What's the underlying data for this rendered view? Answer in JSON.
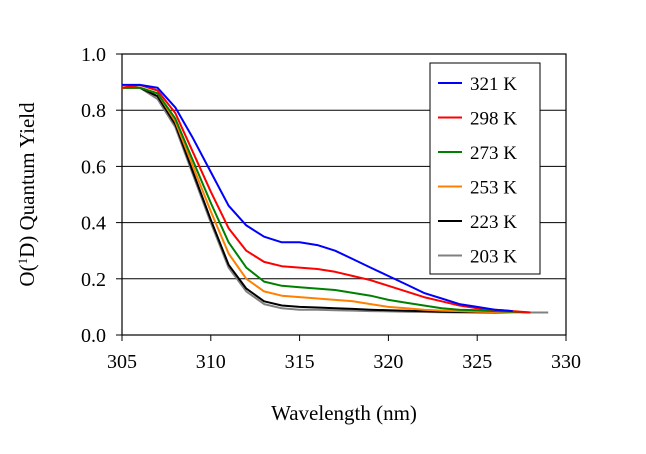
{
  "chart_data": {
    "type": "line",
    "title": "",
    "xlabel": "Wavelength (nm)",
    "ylabel": {
      "prefix": "O(",
      "superscript": "1",
      "suffix": "D) Quantum Yield"
    },
    "xlim": [
      305,
      330
    ],
    "ylim": [
      0.0,
      1.0
    ],
    "x_ticks": [
      305,
      310,
      315,
      320,
      325,
      330
    ],
    "y_ticks": [
      0.0,
      0.2,
      0.4,
      0.6,
      0.8,
      1.0
    ],
    "x_tick_labels": [
      "305",
      "310",
      "315",
      "320",
      "325",
      "330"
    ],
    "y_tick_labels": [
      "0.0",
      "0.2",
      "0.4",
      "0.6",
      "0.8",
      "1.0"
    ],
    "grid": "horizontal",
    "legend_position": "top-right",
    "series": [
      {
        "name": "321 K",
        "color": "#0000ff",
        "points": [
          [
            305,
            0.89
          ],
          [
            306,
            0.89
          ],
          [
            307,
            0.88
          ],
          [
            308,
            0.81
          ],
          [
            309,
            0.7
          ],
          [
            310,
            0.58
          ],
          [
            311,
            0.46
          ],
          [
            312,
            0.39
          ],
          [
            313,
            0.35
          ],
          [
            314,
            0.33
          ],
          [
            315,
            0.33
          ],
          [
            316,
            0.32
          ],
          [
            317,
            0.3
          ],
          [
            318,
            0.27
          ],
          [
            319,
            0.24
          ],
          [
            320,
            0.21
          ],
          [
            321,
            0.18
          ],
          [
            322,
            0.15
          ],
          [
            323,
            0.13
          ],
          [
            324,
            0.11
          ],
          [
            325,
            0.1
          ],
          [
            326,
            0.09
          ],
          [
            327,
            0.085
          ]
        ]
      },
      {
        "name": "298 K",
        "color": "#ff0000",
        "points": [
          [
            305,
            0.88
          ],
          [
            306,
            0.89
          ],
          [
            307,
            0.87
          ],
          [
            308,
            0.79
          ],
          [
            309,
            0.65
          ],
          [
            310,
            0.51
          ],
          [
            311,
            0.38
          ],
          [
            312,
            0.3
          ],
          [
            313,
            0.26
          ],
          [
            314,
            0.245
          ],
          [
            315,
            0.24
          ],
          [
            316,
            0.235
          ],
          [
            317,
            0.225
          ],
          [
            318,
            0.21
          ],
          [
            319,
            0.195
          ],
          [
            320,
            0.175
          ],
          [
            321,
            0.155
          ],
          [
            322,
            0.135
          ],
          [
            323,
            0.12
          ],
          [
            324,
            0.105
          ],
          [
            325,
            0.095
          ],
          [
            326,
            0.09
          ],
          [
            327,
            0.085
          ],
          [
            328,
            0.08
          ]
        ]
      },
      {
        "name": "273 K",
        "color": "#008000",
        "points": [
          [
            305,
            0.88
          ],
          [
            306,
            0.88
          ],
          [
            307,
            0.86
          ],
          [
            308,
            0.77
          ],
          [
            309,
            0.62
          ],
          [
            310,
            0.47
          ],
          [
            311,
            0.33
          ],
          [
            312,
            0.24
          ],
          [
            313,
            0.19
          ],
          [
            314,
            0.175
          ],
          [
            315,
            0.17
          ],
          [
            316,
            0.165
          ],
          [
            317,
            0.16
          ],
          [
            318,
            0.15
          ],
          [
            319,
            0.14
          ],
          [
            320,
            0.125
          ],
          [
            321,
            0.115
          ],
          [
            322,
            0.105
          ],
          [
            323,
            0.095
          ],
          [
            324,
            0.09
          ],
          [
            325,
            0.088
          ],
          [
            326,
            0.085
          ],
          [
            327,
            0.083
          ],
          [
            328,
            0.08
          ]
        ]
      },
      {
        "name": "253 K",
        "color": "#ff8000",
        "points": [
          [
            305,
            0.88
          ],
          [
            306,
            0.88
          ],
          [
            307,
            0.86
          ],
          [
            308,
            0.76
          ],
          [
            309,
            0.6
          ],
          [
            310,
            0.44
          ],
          [
            311,
            0.29
          ],
          [
            312,
            0.2
          ],
          [
            313,
            0.155
          ],
          [
            314,
            0.14
          ],
          [
            315,
            0.135
          ],
          [
            316,
            0.13
          ],
          [
            317,
            0.125
          ],
          [
            318,
            0.12
          ],
          [
            319,
            0.11
          ],
          [
            320,
            0.1
          ],
          [
            321,
            0.095
          ],
          [
            322,
            0.09
          ],
          [
            323,
            0.087
          ],
          [
            324,
            0.085
          ],
          [
            325,
            0.083
          ],
          [
            326,
            0.082
          ],
          [
            327,
            0.08
          ],
          [
            328,
            0.08
          ]
        ]
      },
      {
        "name": "223 K",
        "color": "#000000",
        "points": [
          [
            305,
            0.88
          ],
          [
            306,
            0.88
          ],
          [
            307,
            0.85
          ],
          [
            308,
            0.75
          ],
          [
            309,
            0.58
          ],
          [
            310,
            0.41
          ],
          [
            311,
            0.25
          ],
          [
            312,
            0.165
          ],
          [
            313,
            0.12
          ],
          [
            314,
            0.105
          ],
          [
            315,
            0.1
          ],
          [
            316,
            0.098
          ],
          [
            317,
            0.095
          ],
          [
            318,
            0.093
          ],
          [
            319,
            0.09
          ],
          [
            320,
            0.088
          ],
          [
            321,
            0.086
          ],
          [
            322,
            0.085
          ],
          [
            323,
            0.083
          ],
          [
            324,
            0.082
          ],
          [
            325,
            0.081
          ],
          [
            326,
            0.08
          ],
          [
            327,
            0.08
          ],
          [
            328,
            0.08
          ]
        ]
      },
      {
        "name": "203 K",
        "color": "#808080",
        "points": [
          [
            305,
            0.88
          ],
          [
            306,
            0.88
          ],
          [
            307,
            0.84
          ],
          [
            308,
            0.74
          ],
          [
            309,
            0.57
          ],
          [
            310,
            0.4
          ],
          [
            311,
            0.24
          ],
          [
            312,
            0.155
          ],
          [
            313,
            0.11
          ],
          [
            314,
            0.095
          ],
          [
            315,
            0.09
          ],
          [
            316,
            0.09
          ],
          [
            317,
            0.088
          ],
          [
            318,
            0.087
          ],
          [
            319,
            0.085
          ],
          [
            320,
            0.084
          ],
          [
            321,
            0.083
          ],
          [
            322,
            0.082
          ],
          [
            323,
            0.081
          ],
          [
            324,
            0.08
          ],
          [
            325,
            0.08
          ],
          [
            326,
            0.08
          ],
          [
            327,
            0.08
          ],
          [
            328,
            0.08
          ],
          [
            329,
            0.08
          ]
        ]
      }
    ]
  }
}
